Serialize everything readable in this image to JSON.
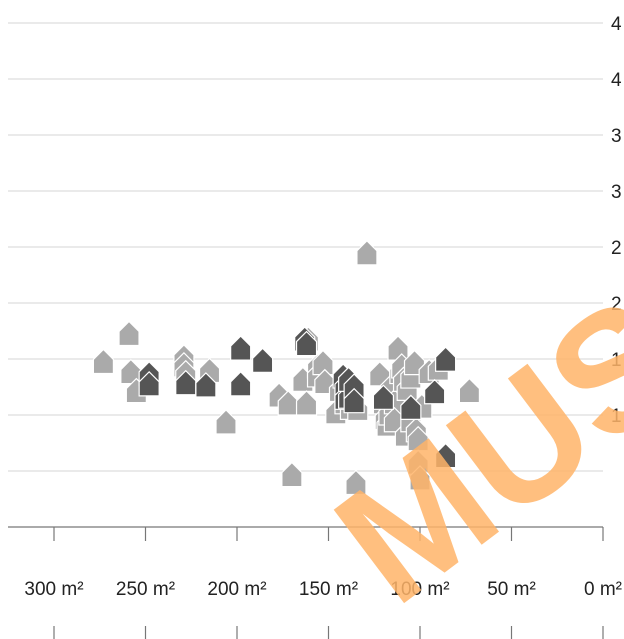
{
  "chart_data": {
    "type": "scatter",
    "title": "",
    "xlabel": "",
    "ylabel": "",
    "x_reversed": true,
    "xlim": [
      310,
      0
    ],
    "ylim": [
      0,
      4.5
    ],
    "x_ticks": [
      300,
      250,
      200,
      150,
      100,
      50,
      0
    ],
    "x_tick_labels": [
      "300 m²",
      "250 m²",
      "200 m²",
      "150 m²",
      "100 m²",
      "50 m²",
      "0 m²"
    ],
    "y_ticks": [
      0.5,
      1.0,
      1.5,
      2.0,
      2.5,
      3.0,
      3.5,
      4.0,
      4.5
    ],
    "y_tick_labels": [
      "",
      "1",
      "1",
      "2",
      "2",
      "3",
      "3",
      "4",
      "4"
    ],
    "grid": true,
    "marker": "house",
    "series": [
      {
        "color": "#aaaaaa",
        "points": [
          [
            273,
            1.46
          ],
          [
            259,
            1.71
          ],
          [
            258,
            1.37
          ],
          [
            255,
            1.2
          ],
          [
            229,
            1.5
          ],
          [
            229,
            1.43
          ],
          [
            228,
            1.36
          ],
          [
            215,
            1.38
          ],
          [
            206,
            0.92
          ],
          [
            177,
            1.16
          ],
          [
            172,
            1.09
          ],
          [
            170,
            0.45
          ],
          [
            164,
            1.3
          ],
          [
            162,
            1.09
          ],
          [
            161,
            1.66
          ],
          [
            156,
            1.42
          ],
          [
            156,
            1.34
          ],
          [
            153,
            1.45
          ],
          [
            152,
            1.28
          ],
          [
            146,
            1.01
          ],
          [
            144,
            1.21
          ],
          [
            141,
            1.1
          ],
          [
            138,
            1.05
          ],
          [
            134,
            1.04
          ],
          [
            135,
            0.38
          ],
          [
            129,
            2.43
          ],
          [
            122,
            1.35
          ],
          [
            120,
            1.1
          ],
          [
            119,
            0.96
          ],
          [
            118,
            0.9
          ],
          [
            117,
            1.0
          ],
          [
            116,
            1.23
          ],
          [
            114,
            1.1
          ],
          [
            114,
            0.94
          ],
          [
            112,
            1.58
          ],
          [
            111,
            1.37
          ],
          [
            110,
            1.42
          ],
          [
            109,
            1.3
          ],
          [
            108,
            0.81
          ],
          [
            107,
            1.22
          ],
          [
            105,
            1.33
          ],
          [
            105,
            0.94
          ],
          [
            103,
            1.45
          ],
          [
            102,
            0.85
          ],
          [
            101,
            0.77
          ],
          [
            101,
            0.56
          ],
          [
            99,
            1.06
          ],
          [
            100,
            0.42
          ],
          [
            95,
            1.37
          ],
          [
            90,
            1.4
          ],
          [
            73,
            1.2
          ]
        ]
      },
      {
        "color": "#555555",
        "points": [
          [
            248,
            1.35
          ],
          [
            248,
            1.26
          ],
          [
            228,
            1.27
          ],
          [
            217,
            1.25
          ],
          [
            198,
            1.58
          ],
          [
            198,
            1.26
          ],
          [
            186,
            1.47
          ],
          [
            163,
            1.66
          ],
          [
            162,
            1.62
          ],
          [
            142,
            1.33
          ],
          [
            141,
            1.24
          ],
          [
            141,
            1.14
          ],
          [
            139,
            1.15
          ],
          [
            139,
            1.3
          ],
          [
            136,
            1.24
          ],
          [
            136,
            1.11
          ],
          [
            120,
            1.14
          ],
          [
            105,
            1.05
          ],
          [
            92,
            1.19
          ],
          [
            86,
            1.48
          ],
          [
            86,
            0.62
          ]
        ]
      }
    ]
  },
  "watermark": {
    "text": "MUS",
    "color": "#ffb469"
  }
}
